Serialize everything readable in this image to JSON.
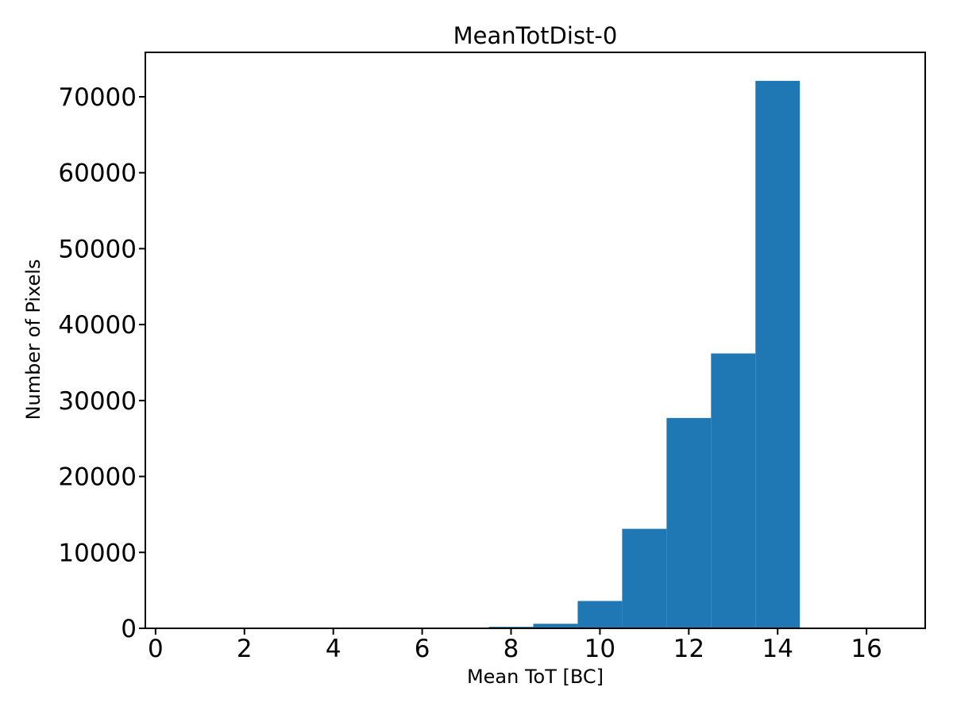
{
  "figure": {
    "background": "#ffffff",
    "axis_color": "#000000"
  },
  "chart_data": {
    "type": "bar",
    "subtype": "histogram",
    "title": "MeanTotDist-0",
    "xlabel": "Mean ToT [BC]",
    "ylabel": "Number of Pixels",
    "bar_color": "#1f77b4",
    "bin_edges": [
      7.5,
      8.5,
      9.5,
      10.5,
      11.5,
      12.5,
      13.5,
      14.5
    ],
    "counts": [
      200,
      600,
      3600,
      13100,
      27700,
      36200,
      72100
    ],
    "xlim": [
      -0.23,
      17.32
    ],
    "ylim": [
      0,
      75850
    ],
    "xticks": [
      0,
      2,
      4,
      6,
      8,
      10,
      12,
      14,
      16
    ],
    "yticks": [
      0,
      10000,
      20000,
      30000,
      40000,
      50000,
      60000,
      70000
    ],
    "grid": false,
    "legend": null
  }
}
